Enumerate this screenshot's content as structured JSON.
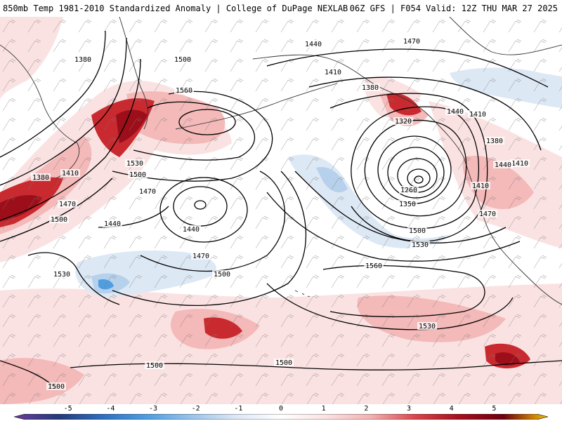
{
  "header": {
    "left_title": "850mb Temp 1981-2010 Standardized Anomaly | College of DuPage NEXLAB",
    "right_title": "06Z GFS | F054 Valid: 12Z THU MAR 27 2025"
  },
  "colors": {
    "contour": "#000000",
    "coast": "#333333",
    "wind": "#666666",
    "pos1": "#fbe2e2",
    "pos2": "#f4b9b9",
    "pos3": "#e06a6a",
    "pos4": "#c92a30",
    "pos5": "#9c0f1a",
    "pos6": "#6e0010",
    "neg1": "#dde8f5",
    "neg2": "#b7d1ec",
    "neg3": "#4f9ee0",
    "neg4": "#2f6fc0"
  },
  "colorbar": {
    "ticks": [
      "-5",
      "-4",
      "-3",
      "-2",
      "-1",
      "0",
      "1",
      "2",
      "3",
      "4",
      "5"
    ],
    "min": -6,
    "max": 6,
    "stops": [
      {
        "value": -6,
        "color": "#6a3d9a"
      },
      {
        "value": -5,
        "color": "#253a7a"
      },
      {
        "value": -4,
        "color": "#2f6fc0"
      },
      {
        "value": -3,
        "color": "#4f9ee0"
      },
      {
        "value": -2,
        "color": "#9cc3ea"
      },
      {
        "value": -1,
        "color": "#dde8f5"
      },
      {
        "value": 0,
        "color": "#ffffff"
      },
      {
        "value": 1,
        "color": "#fbe2e2"
      },
      {
        "value": 2,
        "color": "#f2b3b3"
      },
      {
        "value": 3,
        "color": "#d9474d"
      },
      {
        "value": 4,
        "color": "#a50f1c"
      },
      {
        "value": 5,
        "color": "#6e0010"
      },
      {
        "value": 6,
        "color": "#f5c000"
      }
    ]
  },
  "contour_labels": [
    "1380",
    "1500",
    "1560",
    "1440",
    "1470",
    "1410",
    "1380",
    "1320",
    "1440",
    "1410",
    "1380",
    "1410",
    "1380",
    "1410",
    "1470",
    "1500",
    "1530",
    "1500",
    "1470",
    "1440",
    "1440",
    "1470",
    "1500",
    "1530",
    "1260",
    "1350",
    "1500",
    "1530",
    "1440",
    "1410",
    "1470",
    "1560",
    "1530",
    "1500",
    "1500",
    "1500"
  ]
}
